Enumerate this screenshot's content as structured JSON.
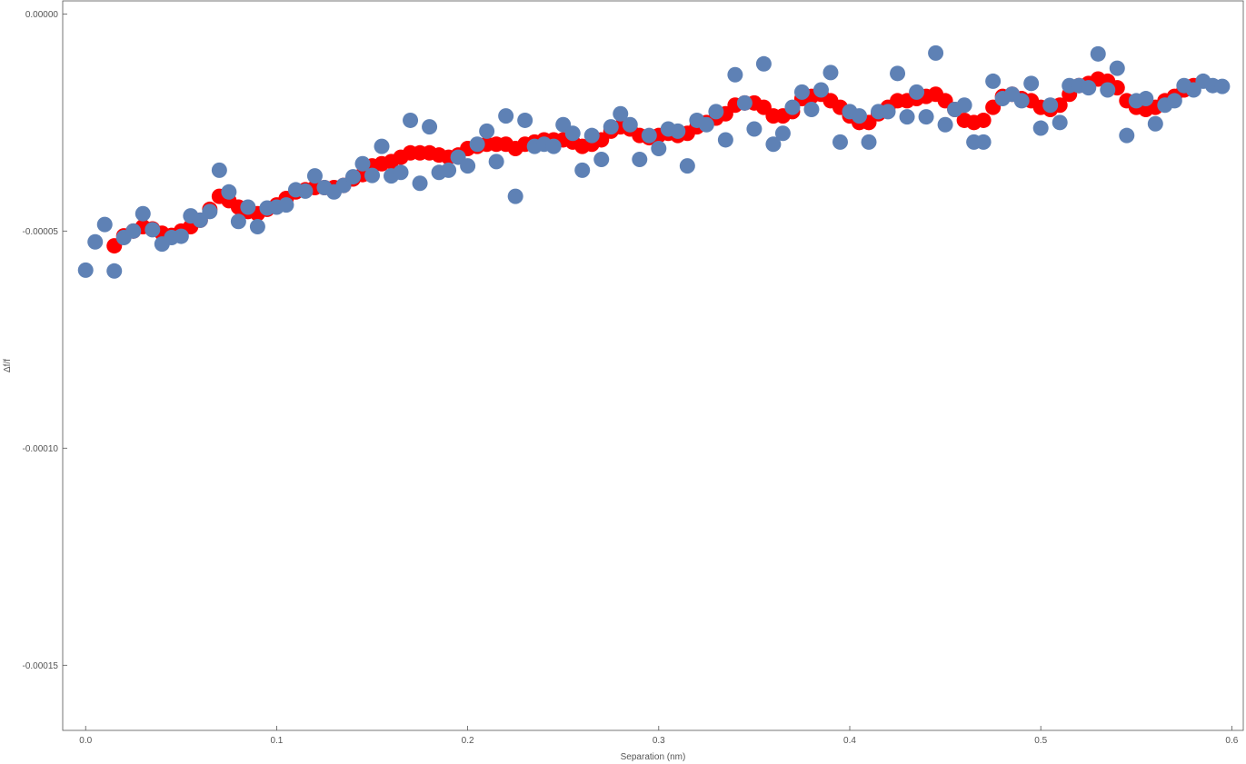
{
  "chart_data": {
    "type": "scatter",
    "title": "",
    "xlabel": "Separation (nm)",
    "ylabel": "Δf/f",
    "xlim": [
      -0.012,
      0.606
    ],
    "ylim": [
      -0.000165,
      3e-06
    ],
    "x_ticks": [
      0.0,
      0.1,
      0.2,
      0.3,
      0.4,
      0.5,
      0.6
    ],
    "x_tick_labels": [
      "0.0",
      "0.1",
      "0.2",
      "0.3",
      "0.4",
      "0.5",
      "0.6"
    ],
    "y_ticks": [
      0.0,
      -5e-05,
      -0.0001,
      -0.00015
    ],
    "y_tick_labels": [
      "0.00000",
      "-0.00005",
      "-0.00010",
      "-0.00015"
    ],
    "grid": false,
    "legend": "none",
    "colors": {
      "red_series": "#ff0000",
      "blue_series": "#5e81b5",
      "axis": "#555555"
    },
    "series": [
      {
        "x": [
          0.015,
          0.02,
          0.025,
          0.03,
          0.035,
          0.04,
          0.045,
          0.05,
          0.055,
          0.06,
          0.065,
          0.07,
          0.075,
          0.08,
          0.085,
          0.09,
          0.095,
          0.1,
          0.105,
          0.11,
          0.115,
          0.12,
          0.125,
          0.13,
          0.135,
          0.14,
          0.145,
          0.15,
          0.155,
          0.16,
          0.165,
          0.17,
          0.175,
          0.18,
          0.185,
          0.19,
          0.195,
          0.2,
          0.205,
          0.21,
          0.215,
          0.22,
          0.225,
          0.23,
          0.235,
          0.24,
          0.245,
          0.25,
          0.255,
          0.26,
          0.265,
          0.27,
          0.275,
          0.28,
          0.285,
          0.29,
          0.295,
          0.3,
          0.305,
          0.31,
          0.315,
          0.32,
          0.325,
          0.33,
          0.335,
          0.34,
          0.345,
          0.35,
          0.355,
          0.36,
          0.365,
          0.37,
          0.375,
          0.38,
          0.385,
          0.39,
          0.395,
          0.4,
          0.405,
          0.41,
          0.415,
          0.42,
          0.425,
          0.43,
          0.435,
          0.44,
          0.445,
          0.45,
          0.455,
          0.46,
          0.465,
          0.47,
          0.475,
          0.48,
          0.485,
          0.49,
          0.495,
          0.5,
          0.505,
          0.51,
          0.515,
          0.52,
          0.525,
          0.53,
          0.535,
          0.54,
          0.545,
          0.55,
          0.555,
          0.56,
          0.565,
          0.57,
          0.575,
          0.58
        ],
        "y": [
          -5.34e-05,
          -5.11e-05,
          -5e-05,
          -4.9e-05,
          -4.95e-05,
          -5.05e-05,
          -5.1e-05,
          -5e-05,
          -4.9e-05,
          -4.75e-05,
          -4.5e-05,
          -4.2e-05,
          -4.3e-05,
          -4.45e-05,
          -4.55e-05,
          -4.6e-05,
          -4.5e-05,
          -4.4e-05,
          -4.25e-05,
          -4.1e-05,
          -4.05e-05,
          -4e-05,
          -4e-05,
          -4e-05,
          -3.95e-05,
          -3.8e-05,
          -3.7e-05,
          -3.5e-05,
          -3.45e-05,
          -3.4e-05,
          -3.3e-05,
          -3.2e-05,
          -3.2e-05,
          -3.2e-05,
          -3.25e-05,
          -3.3e-05,
          -3.25e-05,
          -3.1e-05,
          -3.05e-05,
          -3e-05,
          -3e-05,
          -3e-05,
          -3.1e-05,
          -3e-05,
          -2.95e-05,
          -2.9e-05,
          -2.9e-05,
          -2.9e-05,
          -2.95e-05,
          -3.05e-05,
          -3e-05,
          -2.9e-05,
          -2.7e-05,
          -2.6e-05,
          -2.65e-05,
          -2.8e-05,
          -2.85e-05,
          -2.8e-05,
          -2.75e-05,
          -2.8e-05,
          -2.75e-05,
          -2.6e-05,
          -2.5e-05,
          -2.4e-05,
          -2.3e-05,
          -2.1e-05,
          -2.05e-05,
          -2.05e-05,
          -2.15e-05,
          -2.35e-05,
          -2.35e-05,
          -2.25e-05,
          -1.95e-05,
          -1.9e-05,
          -1.85e-05,
          -2e-05,
          -2.15e-05,
          -2.35e-05,
          -2.5e-05,
          -2.5e-05,
          -2.3e-05,
          -2.15e-05,
          -2e-05,
          -2e-05,
          -1.95e-05,
          -1.9e-05,
          -1.85e-05,
          -2e-05,
          -2.2e-05,
          -2.45e-05,
          -2.5e-05,
          -2.45e-05,
          -2.15e-05,
          -1.9e-05,
          -1.85e-05,
          -1.95e-05,
          -2e-05,
          -2.15e-05,
          -2.2e-05,
          -2.1e-05,
          -1.85e-05,
          -1.65e-05,
          -1.6e-05,
          -1.5e-05,
          -1.55e-05,
          -1.7e-05,
          -2e-05,
          -2.15e-05,
          -2.2e-05,
          -2.15e-05,
          -2e-05,
          -1.9e-05,
          -1.75e-05,
          -1.65e-05
        ]
      },
      {
        "x": [
          0.0,
          0.005,
          0.01,
          0.015,
          0.02,
          0.025,
          0.03,
          0.035,
          0.04,
          0.045,
          0.05,
          0.055,
          0.06,
          0.065,
          0.07,
          0.075,
          0.08,
          0.085,
          0.09,
          0.095,
          0.1,
          0.105,
          0.11,
          0.115,
          0.12,
          0.125,
          0.13,
          0.135,
          0.14,
          0.145,
          0.15,
          0.155,
          0.16,
          0.165,
          0.17,
          0.175,
          0.18,
          0.185,
          0.19,
          0.195,
          0.2,
          0.205,
          0.21,
          0.215,
          0.22,
          0.225,
          0.23,
          0.235,
          0.24,
          0.245,
          0.25,
          0.255,
          0.26,
          0.265,
          0.27,
          0.275,
          0.28,
          0.285,
          0.29,
          0.295,
          0.3,
          0.305,
          0.31,
          0.315,
          0.32,
          0.325,
          0.33,
          0.335,
          0.34,
          0.345,
          0.35,
          0.355,
          0.36,
          0.365,
          0.37,
          0.375,
          0.38,
          0.385,
          0.39,
          0.395,
          0.4,
          0.405,
          0.41,
          0.415,
          0.42,
          0.425,
          0.43,
          0.435,
          0.44,
          0.445,
          0.45,
          0.455,
          0.46,
          0.465,
          0.47,
          0.475,
          0.48,
          0.485,
          0.49,
          0.495,
          0.5,
          0.505,
          0.51,
          0.515,
          0.52,
          0.525,
          0.53,
          0.535,
          0.54,
          0.545,
          0.55,
          0.555,
          0.56,
          0.565,
          0.57,
          0.575,
          0.58,
          0.585,
          0.59,
          0.595
        ],
        "y": [
          -5.9e-05,
          -5.25e-05,
          -4.85e-05,
          -5.92e-05,
          -5.15e-05,
          -5e-05,
          -4.6e-05,
          -4.97e-05,
          -5.3e-05,
          -5.15e-05,
          -5.12e-05,
          -4.65e-05,
          -4.75e-05,
          -4.55e-05,
          -3.6e-05,
          -4.1e-05,
          -4.78e-05,
          -4.45e-05,
          -4.9e-05,
          -4.47e-05,
          -4.45e-05,
          -4.4e-05,
          -4.05e-05,
          -4.08e-05,
          -3.73e-05,
          -4e-05,
          -4.1e-05,
          -3.95e-05,
          -3.75e-05,
          -3.45e-05,
          -3.72e-05,
          -3.05e-05,
          -3.73e-05,
          -3.65e-05,
          -2.45e-05,
          -3.9e-05,
          -2.6e-05,
          -3.65e-05,
          -3.6e-05,
          -3.3e-05,
          -3.5e-05,
          -3e-05,
          -2.7e-05,
          -3.4e-05,
          -2.35e-05,
          -4.2e-05,
          -2.45e-05,
          -3.05e-05,
          -3e-05,
          -3.05e-05,
          -2.55e-05,
          -2.75e-05,
          -3.6e-05,
          -2.8e-05,
          -3.35e-05,
          -2.6e-05,
          -2.3e-05,
          -2.55e-05,
          -3.35e-05,
          -2.8e-05,
          -3.1e-05,
          -2.65e-05,
          -2.7e-05,
          -3.5e-05,
          -2.45e-05,
          -2.55e-05,
          -2.25e-05,
          -2.9e-05,
          -1.4e-05,
          -2.05e-05,
          -2.65e-05,
          -1.15e-05,
          -3e-05,
          -2.75e-05,
          -2.15e-05,
          -1.8e-05,
          -2.2e-05,
          -1.75e-05,
          -1.35e-05,
          -2.95e-05,
          -2.25e-05,
          -2.35e-05,
          -2.95e-05,
          -2.25e-05,
          -2.25e-05,
          -1.37e-05,
          -2.37e-05,
          -1.8e-05,
          -2.37e-05,
          -9e-06,
          -2.55e-05,
          -2.2e-05,
          -2.1e-05,
          -2.95e-05,
          -2.95e-05,
          -1.55e-05,
          -1.95e-05,
          -1.85e-05,
          -2e-05,
          -1.6e-05,
          -2.63e-05,
          -2.1e-05,
          -2.5e-05,
          -1.65e-05,
          -1.65e-05,
          -1.7e-05,
          -9.2e-06,
          -1.75e-05,
          -1.25e-05,
          -2.8e-05,
          -2e-05,
          -1.95e-05,
          -2.53e-05,
          -2.1e-05,
          -2e-05,
          -1.65e-05,
          -1.75e-05,
          -1.55e-05,
          -1.65e-05,
          -1.67e-05
        ]
      }
    ]
  }
}
